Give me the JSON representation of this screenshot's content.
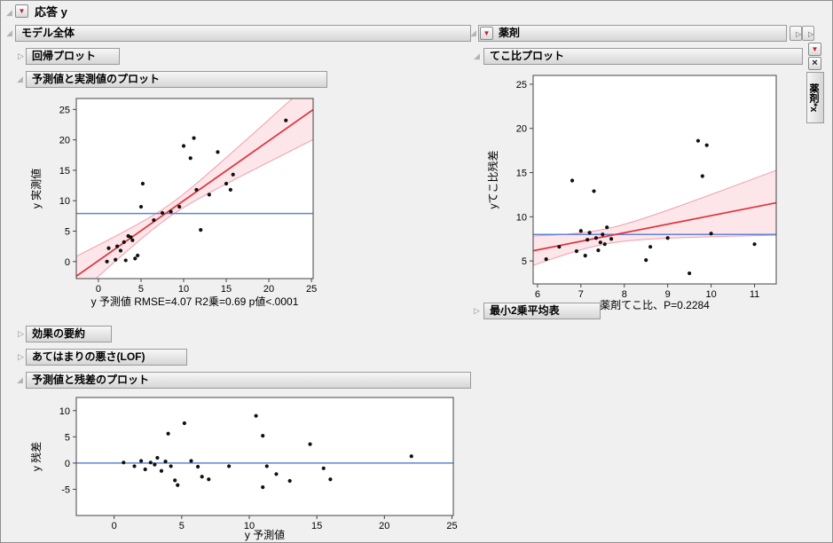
{
  "colors": {
    "fit_line": "#e0323c",
    "mean_line": "#6185d6",
    "band_fill": "rgba(235,80,100,0.14)",
    "band_edge": "rgba(236,130,148,0.75)",
    "point": "#111111",
    "frame": "#444444"
  },
  "root": {
    "title": "応答 y"
  },
  "whole_model": {
    "title": "モデル全体",
    "regression_plot_title": "回帰プロット",
    "actual_by_predicted_title": "予測値と実測値のプロット",
    "effect_summary_title": "効果の要約",
    "lack_of_fit_title": "あてはまりの悪さ(LOF)",
    "residual_by_predicted_title": "予測値と残差のプロット"
  },
  "drug": {
    "title": "薬剤",
    "leverage_plot_title": "てこ比プロット",
    "lsmeans_table_title": "最小2乗平均表"
  },
  "side_tab": {
    "label": "薬剤*x"
  },
  "chart_data": [
    {
      "id": "actual-by-predicted",
      "type": "scatter",
      "title": "予測値と実測値のプロット",
      "xlabel": "y 予測値 RMSE=4.07 R2乗=0.69 p値<.0001",
      "ylabel": "y 実測値",
      "xlim": [
        -2.6,
        25.2
      ],
      "ylim": [
        -2.8,
        26.8
      ],
      "xticks": [
        0,
        5,
        10,
        15,
        20,
        25
      ],
      "yticks": [
        0,
        5,
        10,
        15,
        20,
        25
      ],
      "fit": {
        "slope": 0.985,
        "intercept": 0.15
      },
      "band": {
        "w0": 1.0,
        "xc": 8.3,
        "s": 3.5
      },
      "mean_line": 7.9,
      "points": [
        [
          1,
          0
        ],
        [
          1.2,
          2.2
        ],
        [
          2,
          0.3
        ],
        [
          2.2,
          2.5
        ],
        [
          2.6,
          1.8
        ],
        [
          3,
          3.2
        ],
        [
          3.2,
          0.2
        ],
        [
          3.5,
          4.2
        ],
        [
          3.8,
          4
        ],
        [
          4,
          3.5
        ],
        [
          4.3,
          0.5
        ],
        [
          4.6,
          1
        ],
        [
          5,
          9
        ],
        [
          5.2,
          12.8
        ],
        [
          6.5,
          6.8
        ],
        [
          7.5,
          8
        ],
        [
          8.5,
          8.2
        ],
        [
          9.5,
          9
        ],
        [
          10,
          19
        ],
        [
          10.8,
          17
        ],
        [
          11.2,
          20.3
        ],
        [
          11.5,
          11.8
        ],
        [
          12,
          5.2
        ],
        [
          13,
          11
        ],
        [
          14,
          18
        ],
        [
          15,
          12.8
        ],
        [
          15.5,
          11.8
        ],
        [
          15.8,
          14.3
        ],
        [
          22,
          23.2
        ]
      ]
    },
    {
      "id": "leverage-plot",
      "type": "scatter",
      "title": "てこ比プロット",
      "xlabel": "薬剤てこ比、P=0.2284",
      "ylabel": "yてこ比残差",
      "xlim": [
        5.9,
        11.5
      ],
      "ylim": [
        2.4,
        26.0
      ],
      "xticks": [
        6,
        7,
        8,
        9,
        10,
        11
      ],
      "yticks": [
        5,
        10,
        15,
        20,
        25
      ],
      "fit": {
        "slope": 0.97,
        "intercept": 0.43
      },
      "band": {
        "w0": 0.85,
        "xc": 7.5,
        "s": 0.95
      },
      "mean_line": 8.0,
      "points": [
        [
          6.2,
          5.2
        ],
        [
          6.5,
          6.6
        ],
        [
          6.8,
          14.1
        ],
        [
          6.9,
          6.1
        ],
        [
          7,
          8.4
        ],
        [
          7.1,
          5.6
        ],
        [
          7.15,
          7.4
        ],
        [
          7.2,
          8.2
        ],
        [
          7.3,
          12.9
        ],
        [
          7.35,
          7.6
        ],
        [
          7.4,
          6.2
        ],
        [
          7.45,
          7.1
        ],
        [
          7.5,
          8
        ],
        [
          7.55,
          6.9
        ],
        [
          7.6,
          8.8
        ],
        [
          7.7,
          7.5
        ],
        [
          8.5,
          5.1
        ],
        [
          8.6,
          6.6
        ],
        [
          9,
          7.6
        ],
        [
          9.5,
          3.6
        ],
        [
          9.7,
          18.6
        ],
        [
          9.8,
          14.6
        ],
        [
          9.9,
          18.1
        ],
        [
          10,
          8.1
        ],
        [
          11,
          6.9
        ]
      ]
    },
    {
      "id": "residual-by-predicted",
      "type": "scatter",
      "title": "予測値と残差のプロット",
      "xlabel": "y 予測値",
      "ylabel": "y 残差",
      "xlim": [
        -2.8,
        25.1
      ],
      "ylim": [
        -10,
        12.5
      ],
      "xticks": [
        0,
        5,
        10,
        15,
        20,
        25
      ],
      "yticks": [
        -5,
        0,
        5,
        10
      ],
      "mean_line": 0,
      "points": [
        [
          0.7,
          0.1
        ],
        [
          1.5,
          -0.6
        ],
        [
          2,
          0.4
        ],
        [
          2.3,
          -1.2
        ],
        [
          2.7,
          0.1
        ],
        [
          3,
          -0.3
        ],
        [
          3.2,
          1
        ],
        [
          3.5,
          -1.5
        ],
        [
          3.8,
          0.3
        ],
        [
          4,
          5.6
        ],
        [
          4.2,
          -0.6
        ],
        [
          4.5,
          -3.3
        ],
        [
          4.7,
          -4.2
        ],
        [
          5.2,
          7.6
        ],
        [
          5.7,
          0.4
        ],
        [
          6.2,
          -0.7
        ],
        [
          6.5,
          -2.6
        ],
        [
          7,
          -3.1
        ],
        [
          8.5,
          -0.6
        ],
        [
          10.5,
          9
        ],
        [
          11,
          5.2
        ],
        [
          11,
          -4.6
        ],
        [
          11.3,
          -0.6
        ],
        [
          12,
          -2.1
        ],
        [
          13,
          -3.4
        ],
        [
          14.5,
          3.6
        ],
        [
          15.5,
          -1
        ],
        [
          16,
          -3.1
        ],
        [
          22,
          1.3
        ]
      ]
    }
  ]
}
